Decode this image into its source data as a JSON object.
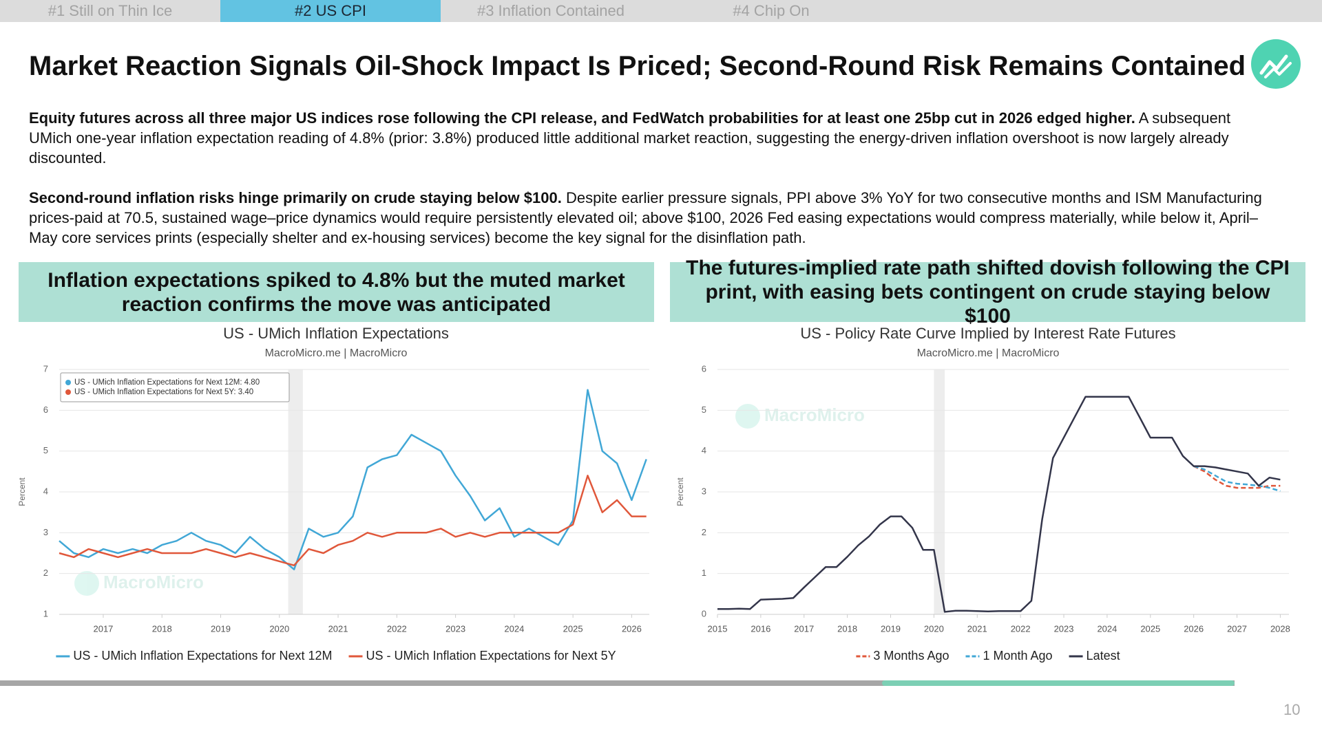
{
  "tabs": [
    "#1 Still on Thin Ice",
    "#2 US CPI",
    "#3 Inflation Contained",
    "#4 Chip On"
  ],
  "active_tab": 1,
  "header": {
    "title": "Market Reaction Signals Oil-Shock Impact Is Priced; Second-Round Risk Remains Contained"
  },
  "paragraphs": [
    {
      "lead": "Equity futures across all three major US indices rose following the CPI release, and FedWatch probabilities for at least one 25bp cut in 2026 edged higher.",
      "text": "A subsequent UMich one-year inflation expectation reading of 4.8% (prior: 3.8%) produced little additional market reaction, suggesting the energy-driven inflation overshoot is now largely already discounted."
    },
    {
      "lead": "Second-round inflation risks hinge primarily on crude staying below $100.",
      "text": "Despite earlier pressure signals, PPI above 3% YoY for two consecutive months and ISM Manufacturing prices-paid at 70.5, sustained wage–price dynamics would require persistently elevated oil; above $100, 2026 Fed easing expectations would compress materially, while below it, April–May core services prints (especially shelter and ex-housing services) become the key signal for the disinflation path."
    }
  ],
  "panels": [
    {
      "heading": "Inflation expectations spiked to 4.8% but the muted market reaction confirms the move was anticipated"
    },
    {
      "heading": "The futures-implied rate path shifted dovish following the CPI print, with easing bets contingent on crude staying below $100"
    }
  ],
  "chart_data": [
    {
      "type": "line",
      "title": "US - UMich Inflation Expectations",
      "subtitle": "MacroMicro.me | MacroMicro",
      "y_label": "Percent",
      "watermark": "MacroMicro",
      "tooltip_entries": [
        "US - UMich Inflation Expectations for Next 12M: 4.80",
        "US - UMich Inflation Expectations for Next 5Y: 3.40"
      ],
      "shaded_period": [
        2020.15,
        2020.4
      ],
      "x": [
        2016.25,
        2016.5,
        2016.75,
        2017,
        2017.25,
        2017.5,
        2017.75,
        2018,
        2018.25,
        2018.5,
        2018.75,
        2019,
        2019.25,
        2019.5,
        2019.75,
        2020,
        2020.25,
        2020.5,
        2020.75,
        2021,
        2021.25,
        2021.5,
        2021.75,
        2022,
        2022.25,
        2022.5,
        2022.75,
        2023,
        2023.25,
        2023.5,
        2023.75,
        2024,
        2024.25,
        2024.5,
        2024.75,
        2025,
        2025.25,
        2025.5,
        2025.75,
        2026,
        2026.25
      ],
      "series": [
        {
          "name": "US - UMich Inflation Expectations for Next 12M",
          "color": "#41a7d6",
          "dashed": false,
          "values": [
            2.8,
            2.5,
            2.4,
            2.6,
            2.5,
            2.6,
            2.5,
            2.7,
            2.8,
            3.0,
            2.8,
            2.7,
            2.5,
            2.9,
            2.6,
            2.4,
            2.1,
            3.1,
            2.9,
            3.0,
            3.4,
            4.6,
            4.8,
            4.9,
            5.4,
            5.2,
            5.0,
            4.4,
            3.9,
            3.3,
            3.6,
            2.9,
            3.1,
            2.9,
            2.7,
            3.3,
            6.5,
            5.0,
            4.7,
            3.8,
            4.8
          ]
        },
        {
          "name": "US - UMich Inflation Expectations for Next 5Y",
          "color": "#e0573a",
          "dashed": false,
          "values": [
            2.5,
            2.4,
            2.6,
            2.5,
            2.4,
            2.5,
            2.6,
            2.5,
            2.5,
            2.5,
            2.6,
            2.5,
            2.4,
            2.5,
            2.4,
            2.3,
            2.2,
            2.6,
            2.5,
            2.7,
            2.8,
            3.0,
            2.9,
            3.0,
            3.0,
            3.0,
            3.1,
            2.9,
            3.0,
            2.9,
            3.0,
            3.0,
            3.0,
            3.0,
            3.0,
            3.2,
            4.4,
            3.5,
            3.8,
            3.4,
            3.4
          ]
        }
      ],
      "xlim": [
        2016.25,
        2026.3
      ],
      "xticks": [
        2017,
        2018,
        2019,
        2020,
        2021,
        2022,
        2023,
        2024,
        2025,
        2026
      ],
      "ylim": [
        1,
        7
      ],
      "yticks": [
        1,
        2,
        3,
        4,
        5,
        6,
        7
      ],
      "grid": true
    },
    {
      "type": "line",
      "title": "US - Policy Rate Curve Implied by Interest Rate Futures",
      "subtitle": "MacroMicro.me | MacroMicro",
      "y_label": "Percent",
      "watermark": "MacroMicro",
      "shaded_period": [
        2020.0,
        2020.25
      ],
      "x": [
        2015,
        2015.25,
        2015.5,
        2015.75,
        2016,
        2016.25,
        2016.5,
        2016.75,
        2017,
        2017.25,
        2017.5,
        2017.75,
        2018,
        2018.25,
        2018.5,
        2018.75,
        2019,
        2019.25,
        2019.5,
        2019.75,
        2020,
        2020.25,
        2020.5,
        2020.75,
        2021,
        2021.25,
        2021.5,
        2021.75,
        2022,
        2022.25,
        2022.5,
        2022.75,
        2023,
        2023.25,
        2023.5,
        2023.75,
        2024,
        2024.25,
        2024.5,
        2024.75,
        2025,
        2025.25,
        2025.5,
        2025.75,
        2026,
        2026.25,
        2026.5,
        2026.75,
        2027,
        2027.25,
        2027.5,
        2027.75,
        2028
      ],
      "series": [
        {
          "name": "3 Months Ago",
          "color": "#e0573a",
          "dashed": true,
          "values": [
            null,
            null,
            null,
            null,
            null,
            null,
            null,
            null,
            null,
            null,
            null,
            null,
            null,
            null,
            null,
            null,
            null,
            null,
            null,
            null,
            null,
            null,
            null,
            null,
            null,
            null,
            null,
            null,
            null,
            null,
            null,
            null,
            null,
            null,
            null,
            null,
            null,
            null,
            null,
            null,
            null,
            null,
            null,
            null,
            3.63,
            3.5,
            3.3,
            3.15,
            3.1,
            3.1,
            3.1,
            3.15,
            3.15
          ]
        },
        {
          "name": "1 Month Ago",
          "color": "#41a7d6",
          "dashed": true,
          "values": [
            null,
            null,
            null,
            null,
            null,
            null,
            null,
            null,
            null,
            null,
            null,
            null,
            null,
            null,
            null,
            null,
            null,
            null,
            null,
            null,
            null,
            null,
            null,
            null,
            null,
            null,
            null,
            null,
            null,
            null,
            null,
            null,
            null,
            null,
            null,
            null,
            null,
            null,
            null,
            null,
            null,
            null,
            null,
            null,
            3.63,
            3.55,
            3.4,
            3.25,
            3.2,
            3.18,
            3.15,
            3.1,
            3.02
          ]
        },
        {
          "name": "Latest",
          "color": "#33354a",
          "dashed": false,
          "values": [
            0.13,
            0.13,
            0.14,
            0.13,
            0.36,
            0.37,
            0.38,
            0.4,
            0.66,
            0.91,
            1.16,
            1.16,
            1.41,
            1.69,
            1.91,
            2.2,
            2.4,
            2.4,
            2.12,
            1.58,
            1.58,
            0.06,
            0.09,
            0.09,
            0.08,
            0.07,
            0.08,
            0.08,
            0.08,
            0.33,
            2.33,
            3.83,
            4.33,
            4.83,
            5.33,
            5.33,
            5.33,
            5.33,
            5.33,
            4.83,
            4.33,
            4.33,
            4.33,
            3.88,
            3.63,
            3.63,
            3.6,
            3.55,
            3.5,
            3.45,
            3.15,
            3.35,
            3.3
          ]
        }
      ],
      "xlim": [
        2015,
        2028.2
      ],
      "xticks": [
        2015,
        2016,
        2017,
        2018,
        2019,
        2020,
        2021,
        2022,
        2023,
        2024,
        2025,
        2026,
        2027,
        2028
      ],
      "ylim": [
        0,
        6
      ],
      "yticks": [
        0,
        1,
        2,
        3,
        4,
        5,
        6
      ],
      "grid": true
    }
  ],
  "page_number": "10"
}
